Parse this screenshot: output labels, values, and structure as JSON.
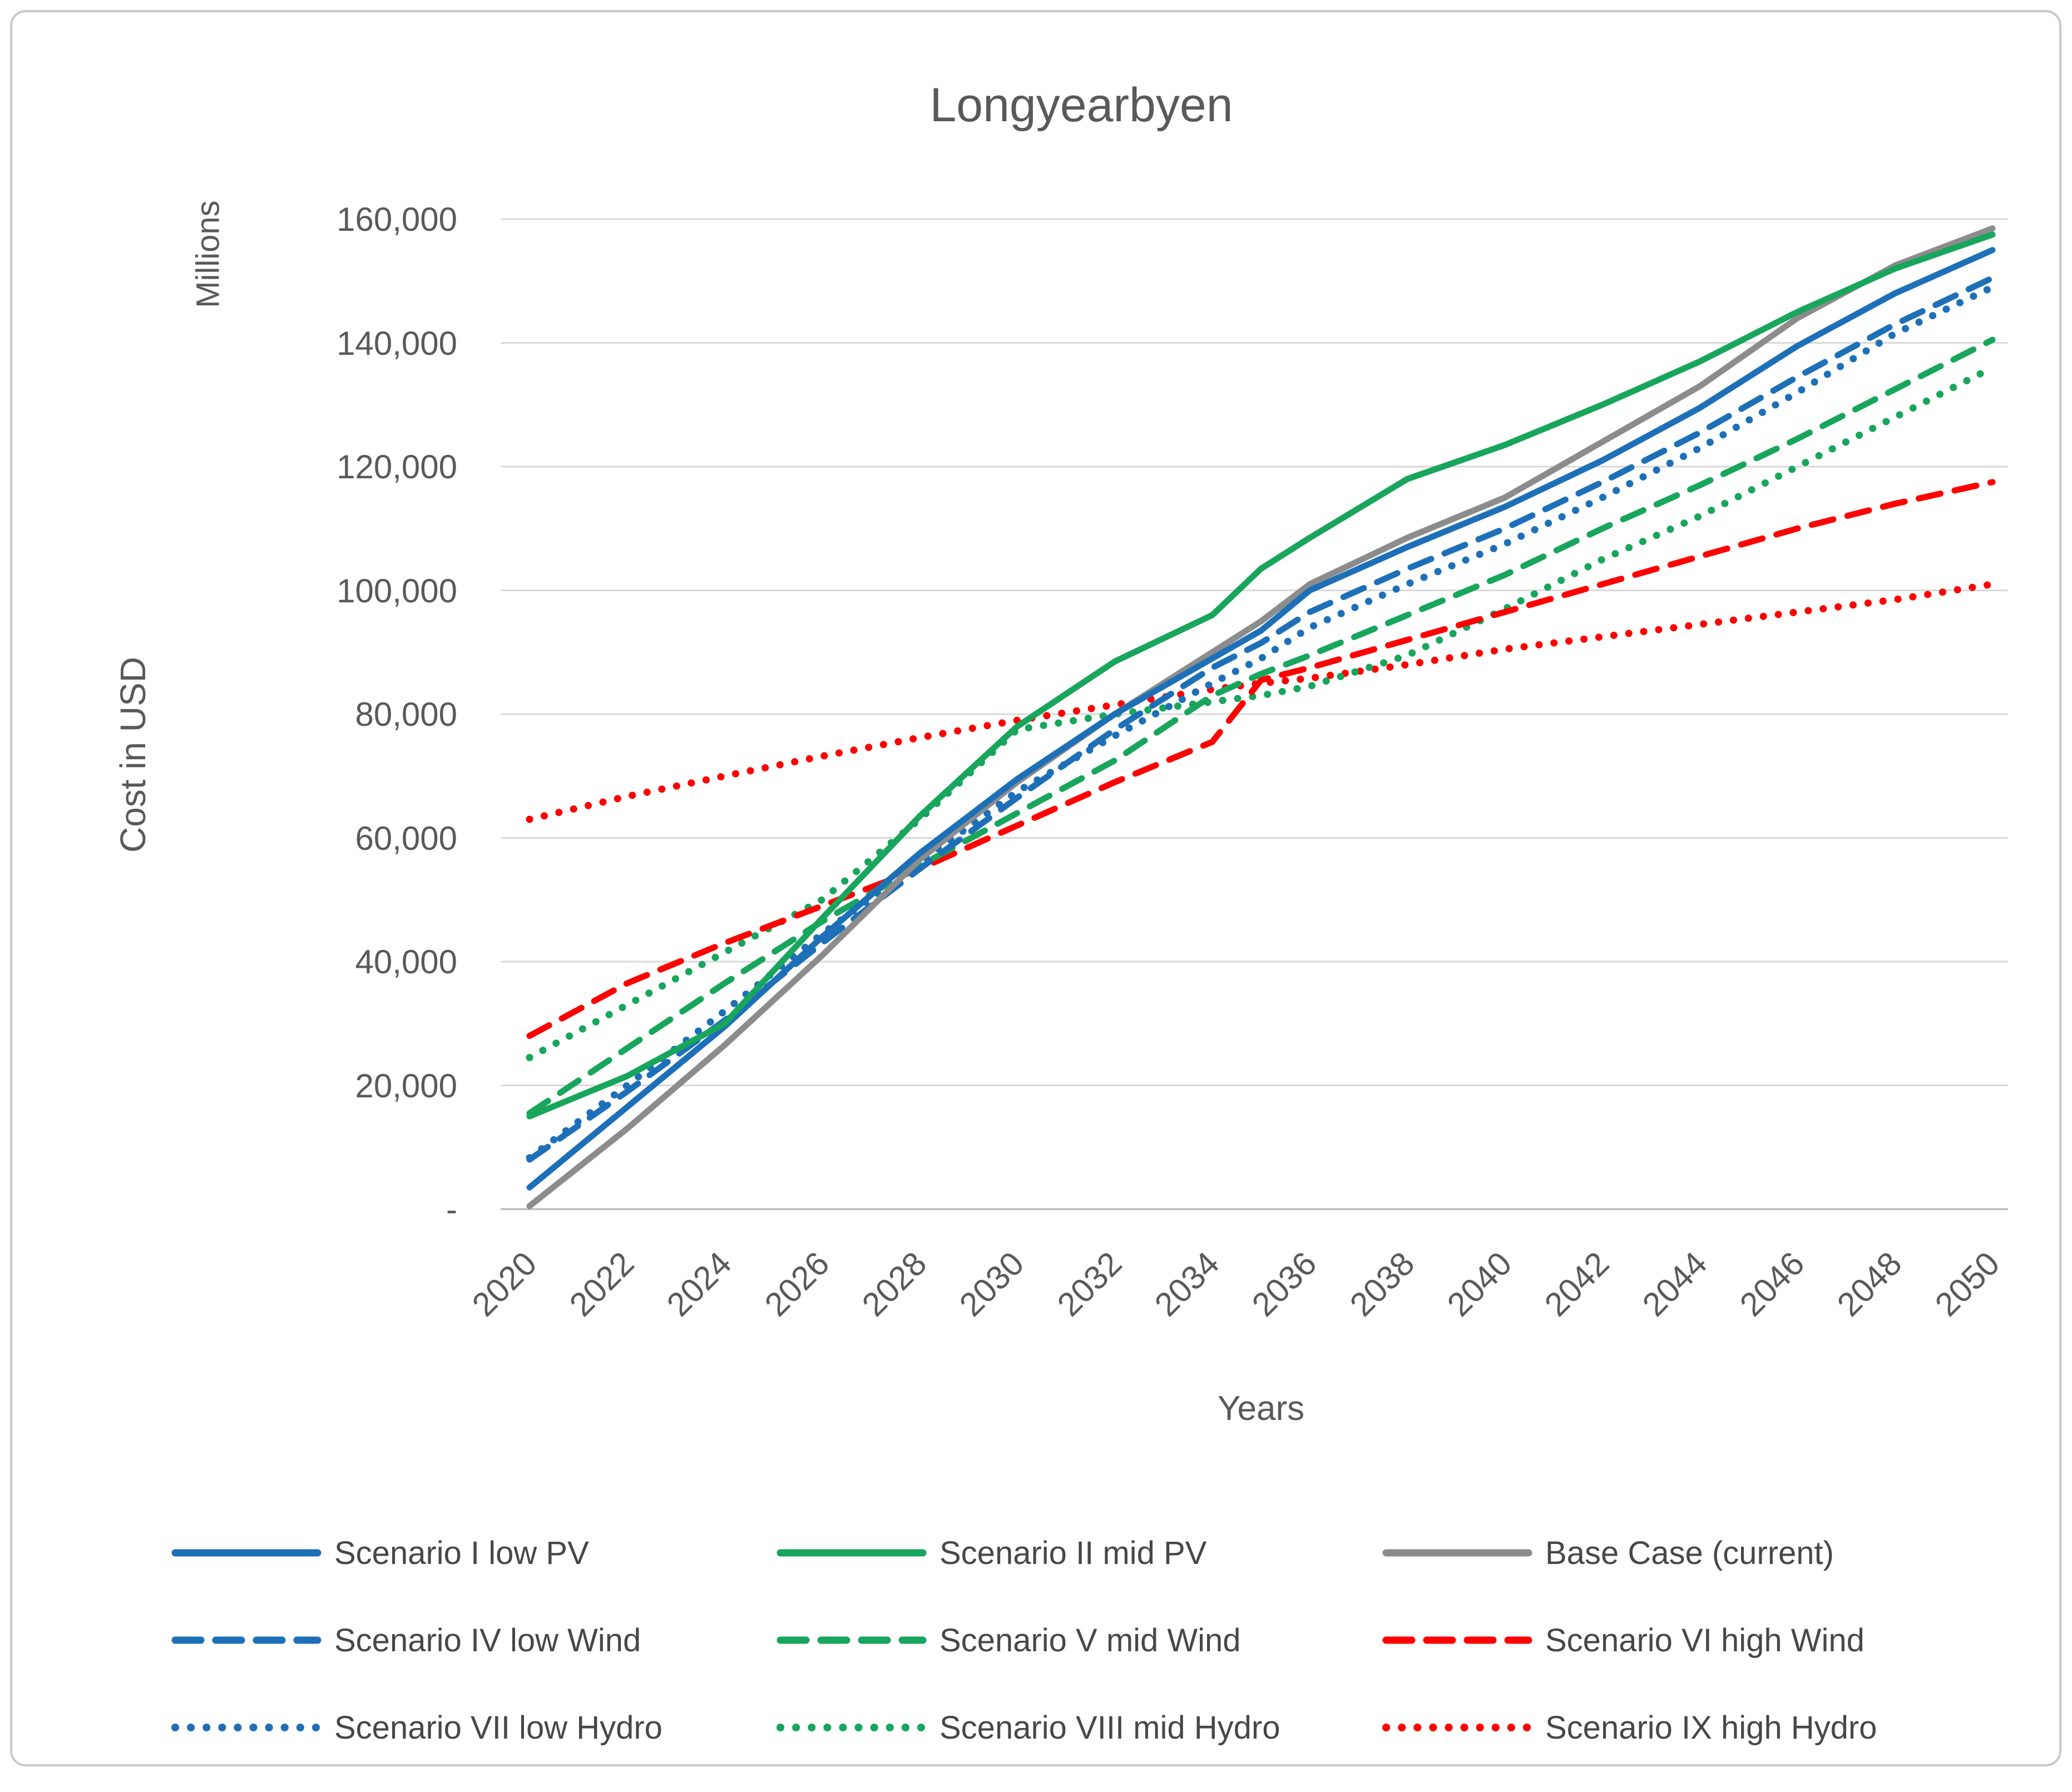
{
  "chart_data": {
    "type": "line",
    "title": "Longyearbyen",
    "xlabel": "Years",
    "ylabel": "Cost in USD",
    "y_unit_label": "Millions",
    "grid": true,
    "legend_position": "bottom",
    "ylim": [
      0,
      160000
    ],
    "y_ticks": [
      {
        "value": 160000,
        "label": "160,000"
      },
      {
        "value": 140000,
        "label": "140,000"
      },
      {
        "value": 120000,
        "label": "120,000"
      },
      {
        "value": 100000,
        "label": "100,000"
      },
      {
        "value": 80000,
        "label": "80,000"
      },
      {
        "value": 60000,
        "label": "60,000"
      },
      {
        "value": 40000,
        "label": "40,000"
      },
      {
        "value": 20000,
        "label": "20,000"
      },
      {
        "value": 0,
        "label": "-"
      }
    ],
    "x_ticks": [
      2020,
      2022,
      2024,
      2026,
      2028,
      2030,
      2032,
      2034,
      2036,
      2038,
      2040,
      2042,
      2044,
      2046,
      2048,
      2050
    ],
    "x": [
      2020,
      2022,
      2024,
      2026,
      2028,
      2030,
      2032,
      2034,
      2035,
      2036,
      2038,
      2040,
      2042,
      2044,
      2046,
      2048,
      2050
    ],
    "series": [
      {
        "name": "Scenario I low PV",
        "color": "#1d70b8",
        "style": "solid",
        "values": [
          3500,
          16500,
          29500,
          44000,
          57500,
          69500,
          80000,
          89000,
          93500,
          100000,
          107000,
          113500,
          121000,
          129500,
          139500,
          148000,
          155000
        ]
      },
      {
        "name": "Scenario II mid PV",
        "color": "#18a55c",
        "style": "solid",
        "values": [
          15000,
          21500,
          30000,
          47000,
          63500,
          78000,
          88500,
          96000,
          103500,
          108500,
          118000,
          123500,
          130000,
          137000,
          145000,
          152000,
          157500
        ]
      },
      {
        "name": "Base Case (current)",
        "color": "#8c8c8c",
        "style": "solid",
        "values": [
          500,
          13000,
          26500,
          41000,
          56500,
          69000,
          80000,
          90000,
          95000,
          101000,
          108500,
          115000,
          124000,
          133000,
          144000,
          152500,
          158500
        ]
      },
      {
        "name": "Scenario IV low Wind",
        "color": "#1d70b8",
        "style": "dashed",
        "values": [
          8000,
          19000,
          30500,
          43000,
          55000,
          66500,
          77500,
          87500,
          91500,
          96500,
          103500,
          110000,
          117500,
          125500,
          134500,
          143000,
          150500
        ]
      },
      {
        "name": "Scenario V mid Wind",
        "color": "#18a55c",
        "style": "dashed",
        "values": [
          15500,
          26000,
          36500,
          46500,
          55500,
          64000,
          72500,
          83000,
          86500,
          89500,
          96000,
          102500,
          110000,
          117000,
          124500,
          132500,
          140500
        ]
      },
      {
        "name": "Scenario VI high Wind",
        "color": "#ff0000",
        "style": "dashed",
        "values": [
          28000,
          36500,
          43000,
          49000,
          55000,
          62000,
          69000,
          75500,
          85500,
          87500,
          92000,
          96500,
          101000,
          105500,
          110000,
          114000,
          117500
        ]
      },
      {
        "name": "Scenario VII low Hydro",
        "color": "#1d70b8",
        "style": "dotted",
        "values": [
          8300,
          20000,
          32000,
          44500,
          56000,
          67500,
          76500,
          85000,
          89000,
          94000,
          101000,
          107500,
          115000,
          123000,
          132000,
          141500,
          149000
        ]
      },
      {
        "name": "Scenario VIII mid Hydro",
        "color": "#18a55c",
        "style": "dotted",
        "values": [
          24500,
          33000,
          41500,
          50000,
          63000,
          77500,
          80000,
          82000,
          83000,
          84500,
          89500,
          97000,
          105000,
          112000,
          120000,
          128000,
          136000
        ]
      },
      {
        "name": "Scenario IX high Hydro",
        "color": "#ff0000",
        "style": "dotted",
        "values": [
          63000,
          66700,
          70000,
          73200,
          76200,
          79000,
          81500,
          84000,
          85000,
          85800,
          88000,
          90500,
          92500,
          94500,
          96500,
          98500,
          101000
        ]
      }
    ]
  },
  "layout_colors": {
    "gridline": "#d9d9d9",
    "axis_line": "#bfbfbf",
    "text": "#595959"
  }
}
